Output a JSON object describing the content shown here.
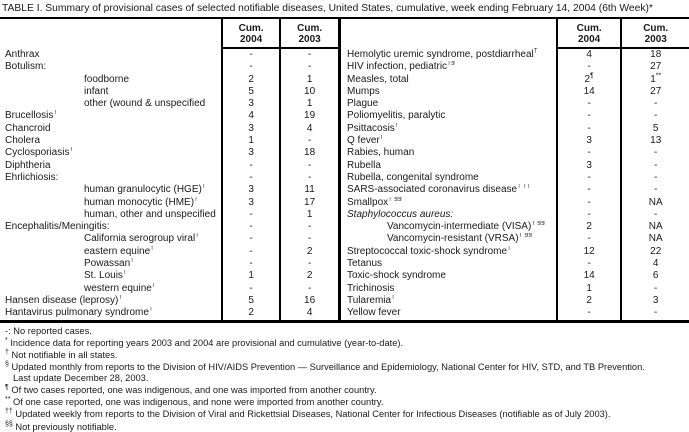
{
  "title": "TABLE I. Summary of provisional cases of selected notifiable diseases, United States, cumulative, week ending February 14, 2004 (6th Week)*",
  "header": {
    "cum": "Cum.",
    "y2004": "2004",
    "y2003": "2003"
  },
  "left_rows": [
    {
      "name": "Anthrax",
      "v04": "-",
      "v03": "-"
    },
    {
      "name": "Botulism:",
      "v04": "-",
      "v03": "-"
    },
    {
      "name": "foodborne",
      "ind": 1,
      "v04": "2",
      "v03": "1"
    },
    {
      "name": "infant",
      "ind": 1,
      "v04": "5",
      "v03": "10"
    },
    {
      "name": "other (wound & unspecified",
      "ind": 1,
      "v04": "3",
      "v03": "1"
    },
    {
      "name": "Brucellosis",
      "sup": "†",
      "v04": "4",
      "v03": "19"
    },
    {
      "name": "Chancroid",
      "v04": "3",
      "v03": "4"
    },
    {
      "name": "Cholera",
      "v04": "1",
      "v03": "-"
    },
    {
      "name": "Cyclosporiasis",
      "sup": "†",
      "v04": "3",
      "v03": "18"
    },
    {
      "name": "Diphtheria",
      "v04": "-",
      "v03": "-"
    },
    {
      "name": "Ehrlichiosis:",
      "v04": "-",
      "v03": "-"
    },
    {
      "name": "human granulocytic (HGE)",
      "sup": "†",
      "ind": 1,
      "v04": "3",
      "v03": "11"
    },
    {
      "name": "human monocytic (HME)",
      "sup": "†",
      "ind": 1,
      "v04": "3",
      "v03": "17"
    },
    {
      "name": "human, other and unspecified",
      "ind": 1,
      "v04": "-",
      "v03": "1"
    },
    {
      "name": "Encephalitis/Meningitis:",
      "v04": "-",
      "v03": "-"
    },
    {
      "name": "California serogroup viral",
      "sup": "†",
      "ind": 1,
      "v04": "-",
      "v03": "-"
    },
    {
      "name": "eastern equine",
      "sup": "†",
      "ind": 1,
      "v04": "-",
      "v03": "2"
    },
    {
      "name": "Powassan",
      "sup": "†",
      "ind": 1,
      "v04": "-",
      "v03": "-"
    },
    {
      "name": "St. Louis",
      "sup": "†",
      "ind": 1,
      "v04": "1",
      "v03": "2"
    },
    {
      "name": "western equine",
      "sup": "†",
      "ind": 1,
      "v04": "-",
      "v03": "-"
    },
    {
      "name": "Hansen disease (leprosy)",
      "sup": "†",
      "v04": "5",
      "v03": "16"
    },
    {
      "name": "Hantavirus pulmonary syndrome",
      "sup": "†",
      "v04": "2",
      "v03": "4"
    }
  ],
  "right_rows": [
    {
      "name": "Hemolytic uremic syndrome, postdiarrheal",
      "sup": "†",
      "v04": "4",
      "v03": "18"
    },
    {
      "name": "HIV infection, pediatric",
      "sup": "†§",
      "v04": "-",
      "v03": "27"
    },
    {
      "name": "Measles, total",
      "v04": "2",
      "s04": "¶",
      "v03": "1",
      "s03": "**"
    },
    {
      "name": "Mumps",
      "v04": "14",
      "v03": "27"
    },
    {
      "name": "Plague",
      "v04": "-",
      "v03": "-"
    },
    {
      "name": "Poliomyelitis, paralytic",
      "v04": "-",
      "v03": "-"
    },
    {
      "name": "Psittacosis",
      "sup": "†",
      "v04": "-",
      "v03": "5"
    },
    {
      "name": "Q fever",
      "sup": "†",
      "v04": "3",
      "v03": "13"
    },
    {
      "name": "Rabies, human",
      "v04": "-",
      "v03": "-"
    },
    {
      "name": "Rubella",
      "v04": "3",
      "v03": "-"
    },
    {
      "name": "Rubella, congenital syndrome",
      "v04": "-",
      "v03": "-"
    },
    {
      "name": "SARS-associated coronavirus disease",
      "sup": "† ††",
      "v04": "-",
      "v03": "-"
    },
    {
      "name": "Smallpox",
      "sup": "† §§",
      "v04": "-",
      "v03": "NA"
    },
    {
      "name": "Staphylococcus aureus:",
      "it": 1,
      "v04": "-",
      "v03": "-"
    },
    {
      "name": "Vancomycin-intermediate (VISA)",
      "sup": "† §§",
      "ind": 1,
      "v04": "2",
      "v03": "NA"
    },
    {
      "name": "Vancomycin-resistant (VRSA)",
      "sup": "† §§",
      "ind": 1,
      "v04": "-",
      "v03": "NA"
    },
    {
      "name": "Streptococcal toxic-shock syndrome",
      "sup": "†",
      "v04": "12",
      "v03": "22"
    },
    {
      "name": "Tetanus",
      "v04": "-",
      "v03": "4"
    },
    {
      "name": "Toxic-shock syndrome",
      "v04": "14",
      "v03": "6"
    },
    {
      "name": "Trichinosis",
      "v04": "1",
      "v03": "-"
    },
    {
      "name": "Tularemia",
      "sup": "†",
      "v04": "2",
      "v03": "3"
    },
    {
      "name": "Yellow fever",
      "v04": "-",
      "v03": "-"
    }
  ],
  "footnotes": [
    {
      "marker": "-:",
      "sup": false,
      "text": "No reported cases."
    },
    {
      "marker": "*",
      "sup": true,
      "text": "Incidence data for reporting years 2003 and 2004 are provisional and cumulative (year-to-date)."
    },
    {
      "marker": "†",
      "sup": true,
      "text": "Not notifiable in all states."
    },
    {
      "marker": "§",
      "sup": true,
      "text": "Updated monthly from reports to the Division of HIV/AIDS Prevention — Surveillance and Epidemiology, National Center for HIV, STD, and TB Prevention.",
      "text2": "Last update December 28, 2003."
    },
    {
      "marker": "¶",
      "sup": true,
      "text": "Of two cases reported, one was indigenous, and one was imported from another country."
    },
    {
      "marker": "**",
      "sup": true,
      "text": "Of one case reported, one was indigenous, and none were imported from another country."
    },
    {
      "marker": "††",
      "sup": true,
      "text": "Updated weekly from reports to the Division of Viral and Rickettsial Diseases, National Center for Infectious Diseases (notifiable as of July 2003)."
    },
    {
      "marker": "§§",
      "sup": true,
      "text": "Not previously notifiable."
    }
  ]
}
